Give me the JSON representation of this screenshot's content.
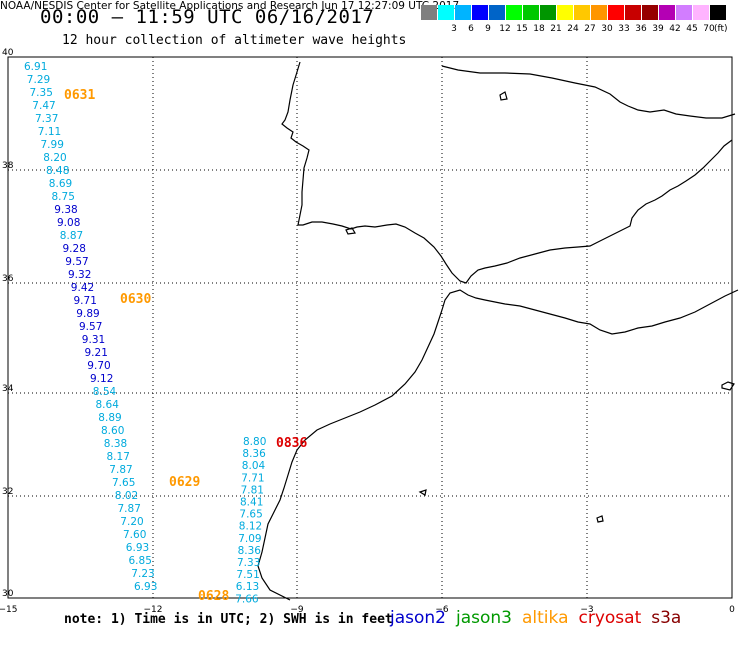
{
  "header": {
    "title": "00:00 – 11:59 UTC 06/16/2017",
    "subtitle": "12 hour collection of altimeter wave heights"
  },
  "colorbar": {
    "colors": [
      "#7f7f7f",
      "#00ffff",
      "#00b4ff",
      "#0000ff",
      "#0064c8",
      "#00ff00",
      "#00c800",
      "#009600",
      "#ffff00",
      "#ffc800",
      "#ff9600",
      "#ff0000",
      "#c80000",
      "#960000",
      "#b400b4",
      "#d27dff",
      "#ffb4ff",
      "#000000"
    ],
    "labels": [
      "3",
      "6",
      "9",
      "12",
      "15",
      "18",
      "21",
      "24",
      "27",
      "30",
      "33",
      "36",
      "39",
      "42",
      "45",
      "70"
    ],
    "unit": "(ft)"
  },
  "axes": {
    "lon_ticks": [
      "−15",
      "−12",
      "−9",
      "−6",
      "−3",
      "0"
    ],
    "lat_ticks": [
      "40",
      "38",
      "36",
      "34",
      "32",
      "30"
    ]
  },
  "tracks": [
    {
      "values": [
        "6.91",
        "7.29",
        "7.35",
        "7.47",
        "7.37",
        "7.11",
        "7.99",
        "8.20",
        "8.48",
        "8.69",
        "8.75",
        "9.38",
        "9.08",
        "8.87",
        "9.28",
        "9.57",
        "9.32",
        "9.42",
        "9.71",
        "9.89",
        "9.57",
        "9.31",
        "9.21",
        "9.70",
        "9.12",
        "8.54",
        "8.64",
        "8.89",
        "8.60",
        "8.38",
        "8.17",
        "7.87",
        "7.65",
        "8.02",
        "7.87",
        "7.20",
        "7.60",
        "6.93",
        "6.85",
        "7.23",
        "6.93"
      ],
      "colors": [
        "#00aadd",
        "#00aadd",
        "#00aadd",
        "#00aadd",
        "#00aadd",
        "#00aadd",
        "#00aadd",
        "#00aadd",
        "#00aadd",
        "#00aadd",
        "#00aadd",
        "#0000cc",
        "#0000cc",
        "#00aadd",
        "#0000cc",
        "#0000cc",
        "#0000cc",
        "#0000cc",
        "#0000cc",
        "#0000cc",
        "#0000cc",
        "#0000cc",
        "#0000cc",
        "#0000cc",
        "#0000cc",
        "#00aadd",
        "#00aadd",
        "#00aadd",
        "#00aadd",
        "#00aadd",
        "#00aadd",
        "#00aadd",
        "#00aadd",
        "#00aadd",
        "#00aadd",
        "#00aadd",
        "#00aadd",
        "#00aadd",
        "#00aadd",
        "#00aadd",
        "#00aadd"
      ]
    },
    {
      "values": [
        "8.80",
        "8.36",
        "8.04",
        "7.71",
        "7.81",
        "8.41",
        "7.65",
        "8.12",
        "7.09",
        "8.36",
        "7.33",
        "7.51",
        "6.13",
        "7.66"
      ],
      "colors": [
        "#00aadd",
        "#00aadd",
        "#00aadd",
        "#00aadd",
        "#00aadd",
        "#00aadd",
        "#00aadd",
        "#00aadd",
        "#00aadd",
        "#00aadd",
        "#00aadd",
        "#00aadd",
        "#00aadd",
        "#00aadd"
      ]
    }
  ],
  "time_labels": [
    {
      "text": "0631",
      "color": "#ff9900"
    },
    {
      "text": "0630",
      "color": "#ff9900"
    },
    {
      "text": "0629",
      "color": "#ff9900"
    },
    {
      "text": "0628",
      "color": "#ff9900"
    },
    {
      "text": "0836",
      "color": "#dd0000"
    }
  ],
  "note": "note: 1) Time is in UTC; 2) SWH is in feet",
  "legend": [
    {
      "name": "jason2",
      "color": "#0000cc"
    },
    {
      "name": "jason3",
      "color": "#009900"
    },
    {
      "name": "altika",
      "color": "#ff9900"
    },
    {
      "name": "cryosat",
      "color": "#dd0000"
    },
    {
      "name": "s3a",
      "color": "#880000"
    }
  ],
  "credit": "NOAA/NESDIS Center for Satellite Applications and Research    Jun 17 12:27:09 UTC 2017"
}
